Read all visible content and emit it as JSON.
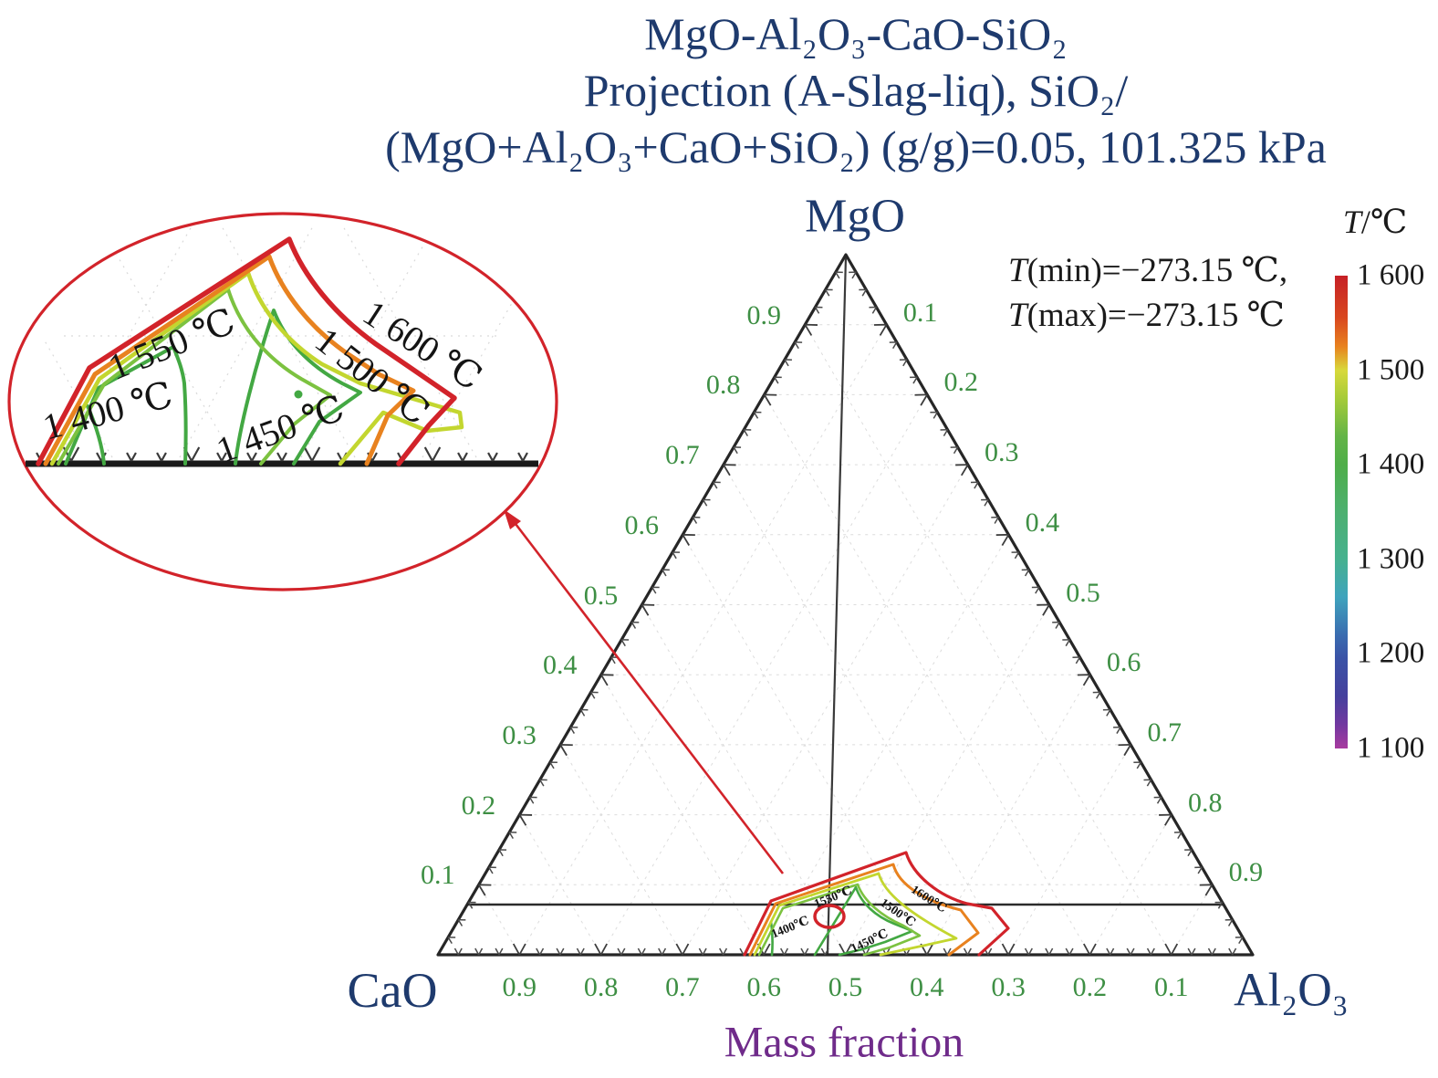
{
  "title": {
    "line1": "MgO-Al₂O₃-CaO-SiO₂",
    "line2": "Projection (A-Slag-liq), SiO₂/",
    "line3": "(MgO+Al₂O₃+CaO+SiO₂) (g/g)=0.05, 101.325 kPa"
  },
  "corners": {
    "top": "MgO",
    "bottom_left": "CaO",
    "bottom_right": "Al₂O₃"
  },
  "axis": {
    "bottom_label": "Mass fraction",
    "left_ticks": [
      "0.9",
      "0.8",
      "0.7",
      "0.6",
      "0.5",
      "0.4",
      "0.3",
      "0.2",
      "0.1"
    ],
    "right_ticks": [
      "0.1",
      "0.2",
      "0.3",
      "0.4",
      "0.5",
      "0.6",
      "0.7",
      "0.8",
      "0.9"
    ],
    "bottom_ticks": [
      "0.9",
      "0.8",
      "0.7",
      "0.6",
      "0.5",
      "0.4",
      "0.3",
      "0.2",
      "0.1"
    ]
  },
  "temperature_note": {
    "t_symbol": "T",
    "min_rest": "(min)=−273.15 ℃,",
    "max_rest": "(max)=−273.15 ℃"
  },
  "colorbar": {
    "title_t": "T",
    "title_rest": "/℃",
    "tick_labels": [
      "1 600",
      "1 500",
      "1 400",
      "1 300",
      "1 200",
      "1 100"
    ],
    "top_color": "#c62026",
    "bottom_color": "#a83a9f"
  },
  "inset": {
    "labels": {
      "t1400": "1 400 ℃",
      "t1450": "1 450 ℃",
      "t1500": "1 500 ℃",
      "t1550": "1 550 ℃",
      "t1600": "1 600 ℃"
    }
  },
  "main_plot": {
    "contour_labels": {
      "t1400": "1400℃",
      "t1450": "1450℃",
      "t1500": "1500℃",
      "t1550": "1550℃",
      "t1600": "1600℃"
    }
  },
  "chart_data": {
    "type": "contour",
    "subtype": "ternary-phase-diagram",
    "title": "MgO-Al₂O₃-CaO-SiO₂ Projection (A-Slag-liq), SiO₂/(MgO+Al₂O₃+CaO+SiO₂) (g/g)=0.05, 101.325 kPa",
    "pressure": "101.325 kPa",
    "vertex_labels": {
      "top": "MgO",
      "bottom_left": "CaO",
      "bottom_right": "Al₂O₃"
    },
    "axes": {
      "bottom": {
        "label": "Mass fraction",
        "ticks": [
          0.9,
          0.8,
          0.7,
          0.6,
          0.5,
          0.4,
          0.3,
          0.2,
          0.1
        ]
      },
      "left": {
        "component": "MgO",
        "ticks": [
          0.9,
          0.8,
          0.7,
          0.6,
          0.5,
          0.4,
          0.3,
          0.2,
          0.1
        ]
      },
      "right": {
        "component": "Al₂O₃",
        "ticks": [
          0.1,
          0.2,
          0.3,
          0.4,
          0.5,
          0.6,
          0.7,
          0.8,
          0.9
        ]
      }
    },
    "contours": {
      "levels_degC": [
        1400,
        1450,
        1500,
        1550,
        1600
      ],
      "level_colors": {
        "1400": "#43a843",
        "1450": "#7cc240",
        "1500": "#c3d62f",
        "1550": "#e8821f",
        "1600": "#d2232a"
      },
      "region_description": "Liquidus isotherm band hugging the CaO–Al₂O₃ base at low MgO, spanning roughly CaO 0.34–0.63; magnified copy shown in red-outlined inset ellipse linked by red arrow"
    },
    "reference_lines": {
      "horizontal_MgO_0.1": true,
      "vertical_isopleth_from_MgO_apex": true
    },
    "colorbar": {
      "label": "T/℃",
      "min": 1100,
      "max": 1600,
      "tick_step": 100,
      "tick_labels": [
        "1 600",
        "1 500",
        "1 400",
        "1 300",
        "1 200",
        "1 100"
      ]
    },
    "annotations": [
      "T(min)=−273.15 ℃,",
      "T(max)=−273.15 ℃"
    ]
  }
}
